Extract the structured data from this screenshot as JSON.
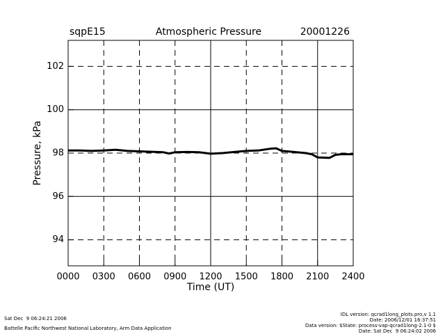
{
  "chart_data": {
    "type": "line",
    "title": "Atmospheric Pressure",
    "site": "sqpE15",
    "date": "20001226",
    "x_label": "Time (UT)",
    "y_label": "Pressure, kPa",
    "x": [
      0,
      1,
      2,
      3,
      4,
      5,
      6,
      7,
      8,
      8.5,
      9,
      10,
      11,
      12,
      13,
      14,
      15,
      16,
      17,
      17.5,
      18,
      19,
      20,
      20.5,
      21,
      22,
      22.5,
      23,
      24
    ],
    "values": [
      98.12,
      98.12,
      98.1,
      98.12,
      98.15,
      98.1,
      98.08,
      98.06,
      98.04,
      97.98,
      98.04,
      98.05,
      98.04,
      97.97,
      98.0,
      98.05,
      98.1,
      98.12,
      98.2,
      98.22,
      98.1,
      98.05,
      98.0,
      97.95,
      97.8,
      97.78,
      97.92,
      97.95,
      97.95
    ],
    "color": "#000000",
    "xlim": [
      0,
      24
    ],
    "xticks": [
      {
        "value": 0,
        "label": "0000"
      },
      {
        "value": 3,
        "label": "0300"
      },
      {
        "value": 6,
        "label": "0600"
      },
      {
        "value": 9,
        "label": "0900"
      },
      {
        "value": 12,
        "label": "1200"
      },
      {
        "value": 15,
        "label": "1500"
      },
      {
        "value": 18,
        "label": "1800"
      },
      {
        "value": 21,
        "label": "2100"
      },
      {
        "value": 24,
        "label": "2400"
      }
    ],
    "ylim": [
      92.8,
      103.2
    ],
    "yticks": [
      94,
      96,
      98,
      100,
      102
    ],
    "grid": true,
    "footer_left": [
      "Sat Dec  9 06:24:21 2006",
      "Battelle Pacific Northwest National Laboratory, Arm Data Application"
    ],
    "footer_right": [
      "IDL version: qcrad1long_plots.pro,v 1.1",
      "Date: 2006/12/01 16:37:51",
      "Data version: $State: process-vap-qcrad1long-2.1-0 $",
      "Date: Sat Dec  9 06:24:02 2006"
    ]
  }
}
